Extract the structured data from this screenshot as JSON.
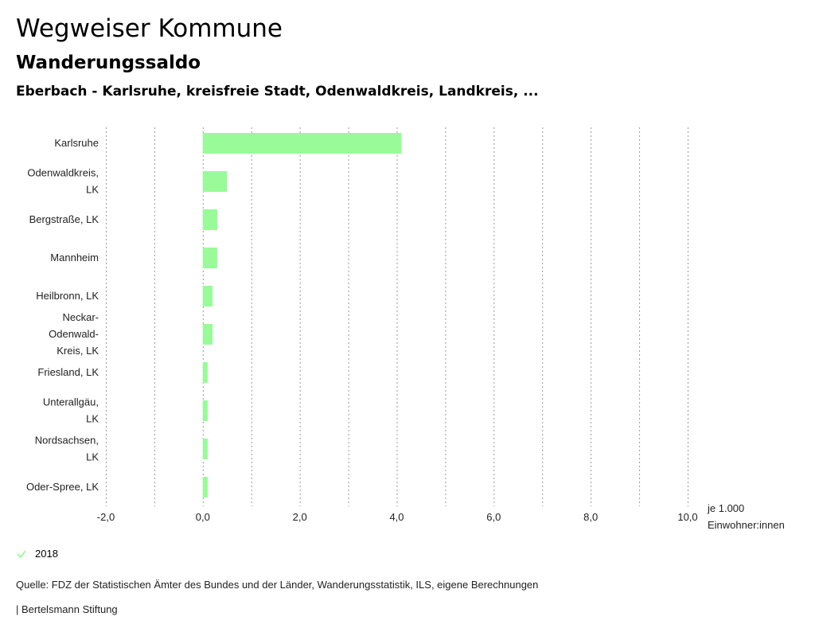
{
  "header": {
    "title": "Wegweiser Kommune",
    "subtitle": "Wanderungssaldo",
    "selection": "Eberbach - Karlsruhe, kreisfreie Stadt, Odenwaldkreis, Landkreis, ..."
  },
  "chart_data": {
    "type": "bar",
    "orientation": "horizontal",
    "categories": [
      [
        "Karlsruhe"
      ],
      [
        "Odenwaldkreis,",
        "LK"
      ],
      [
        "Bergstraße, LK"
      ],
      [
        "Mannheim"
      ],
      [
        "Heilbronn, LK"
      ],
      [
        "Neckar-",
        "Odenwald-",
        "Kreis, LK"
      ],
      [
        "Friesland, LK"
      ],
      [
        "Unterallgäu,",
        "LK"
      ],
      [
        "Nordsachsen,",
        "LK"
      ],
      [
        "Oder-Spree, LK"
      ]
    ],
    "series": [
      {
        "name": "2018",
        "values": [
          4.1,
          0.5,
          0.3,
          0.3,
          0.2,
          0.2,
          0.1,
          0.1,
          0.1,
          0.1
        ]
      }
    ],
    "xlim": [
      -2,
      10
    ],
    "gridlines": [
      -2,
      -1,
      0,
      1,
      2,
      3,
      4,
      5,
      6,
      7,
      8,
      9,
      10
    ],
    "ticks": [
      {
        "value": -2,
        "label": "-2,0"
      },
      {
        "value": 0,
        "label": "0,0"
      },
      {
        "value": 2,
        "label": "2,0"
      },
      {
        "value": 4,
        "label": "4,0"
      },
      {
        "value": 6,
        "label": "6,0"
      },
      {
        "value": 8,
        "label": "8,0"
      },
      {
        "value": 10,
        "label": "10,0"
      }
    ],
    "unit_lines": [
      "je 1.000",
      "Einwohner:innen"
    ],
    "bar_color": "#98fb98",
    "grid_color": "#999999"
  },
  "legend": {
    "items": [
      {
        "label": "2018",
        "color": "#98fb98",
        "icon": "check-icon"
      }
    ]
  },
  "footer": {
    "source": "Quelle: FDZ der Statistischen Ämter des Bundes und der Länder, Wanderungsstatistik, ILS, eigene Berechnungen",
    "publisher": "| Bertelsmann Stiftung"
  }
}
